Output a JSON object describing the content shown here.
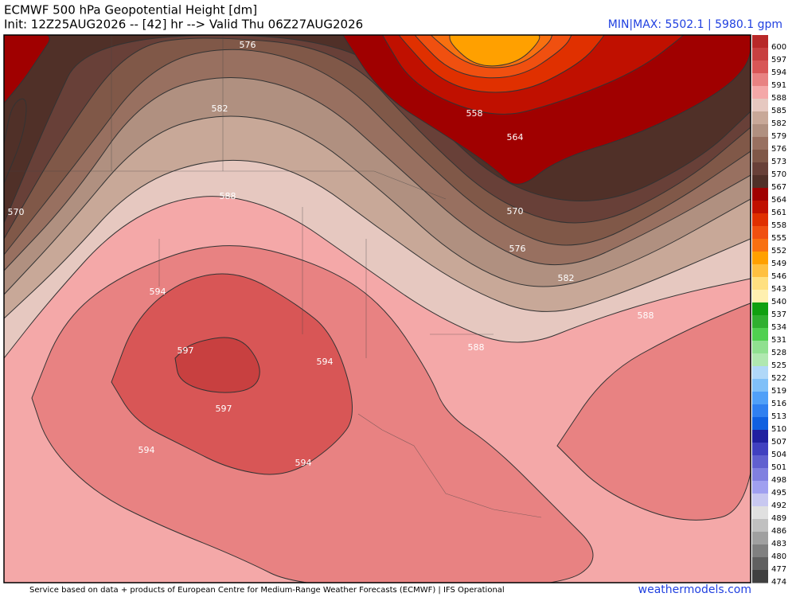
{
  "header": {
    "title": "ECMWF 500 hPa Geopotential Height [dm]",
    "init": "Init: 12Z25AUG2026 -- [42] hr --> Valid Thu 06Z27AUG2026",
    "minmax": "MIN|MAX: 5502.1 | 5980.1 gpm"
  },
  "map": {
    "contour_labels": [
      576,
      582,
      588,
      594,
      597,
      594,
      597,
      594,
      594,
      558,
      564,
      570,
      570,
      576,
      582,
      588,
      588
    ]
  },
  "colorbar": {
    "levels": [
      600,
      597,
      594,
      591,
      588,
      585,
      582,
      579,
      576,
      573,
      570,
      567,
      564,
      561,
      558,
      555,
      552,
      549,
      546,
      543,
      540,
      537,
      534,
      531,
      528,
      525,
      522,
      519,
      516,
      513,
      510,
      507,
      504,
      501,
      498,
      495,
      492,
      489,
      486,
      483,
      480,
      477,
      474
    ],
    "colors": [
      "#b82828",
      "#c84040",
      "#d85656",
      "#e88282",
      "#f4a8a8",
      "#e6c8c0",
      "#c8a898",
      "#b09080",
      "#987060",
      "#805848",
      "#684038",
      "#503028",
      "#a00000",
      "#c01000",
      "#e03000",
      "#f05010",
      "#f87010",
      "#ffa000",
      "#ffc040",
      "#ffe080",
      "#fff0b0",
      "#10a010",
      "#30b030",
      "#50d050",
      "#90e090",
      "#b0e8b0",
      "#b0d8f8",
      "#80c0f8",
      "#50a0f8",
      "#3080f0",
      "#1060e0",
      "#2020a0",
      "#4040c0",
      "#6060d0",
      "#8080e0",
      "#a0a0f0",
      "#c8c8f0",
      "#e0e0e0",
      "#c0c0c0",
      "#a0a0a0",
      "#808080",
      "#606060",
      "#404040"
    ]
  },
  "footer": {
    "credit": "Service based on data + products of European Centre for Medium-Range Weather Forecasts (ECMWF) | IFS Operational",
    "site": "weathermodels.com"
  }
}
